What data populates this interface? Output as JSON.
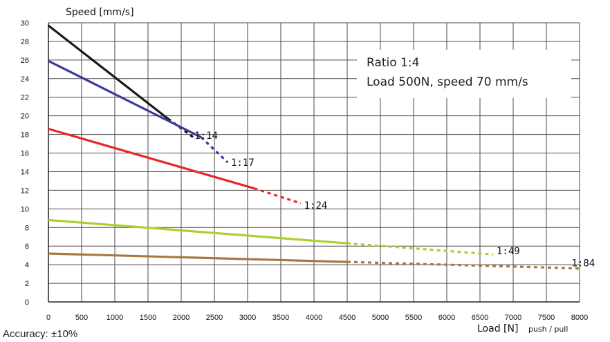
{
  "chart_data": {
    "type": "line",
    "ylabel": "Speed [mm/s]",
    "xlabel": "Load [N]",
    "xlabel_suffix": "push / pull",
    "xlim": [
      0,
      8000
    ],
    "ylim": [
      0,
      30
    ],
    "x_ticks": [
      0,
      500,
      1000,
      1500,
      2000,
      2500,
      3000,
      3500,
      4000,
      4500,
      5000,
      5500,
      6000,
      6500,
      7000,
      7500,
      8000
    ],
    "y_ticks": [
      0,
      2,
      4,
      6,
      8,
      10,
      12,
      14,
      16,
      18,
      20,
      22,
      24,
      26,
      28,
      30
    ],
    "grid": true,
    "series": [
      {
        "name": "1:14",
        "color": "#1a1a1a",
        "solid": [
          [
            0,
            29.7
          ],
          [
            1800,
            19.7
          ]
        ],
        "dashed": [
          [
            1800,
            19.7
          ],
          [
            2200,
            17.6
          ]
        ]
      },
      {
        "name": "1:17",
        "color": "#3a3aa0",
        "solid": [
          [
            0,
            25.9
          ],
          [
            2300,
            17.7
          ]
        ],
        "dashed": [
          [
            2300,
            17.7
          ],
          [
            2700,
            15.0
          ]
        ]
      },
      {
        "name": "1:24",
        "color": "#e8262b",
        "solid": [
          [
            0,
            18.6
          ],
          [
            3100,
            12.2
          ]
        ],
        "dashed": [
          [
            3100,
            12.2
          ],
          [
            3800,
            10.6
          ]
        ]
      },
      {
        "name": "1:49",
        "color": "#a8d130",
        "solid": [
          [
            0,
            8.8
          ],
          [
            4500,
            6.3
          ]
        ],
        "dashed": [
          [
            4500,
            6.3
          ],
          [
            6700,
            5.1
          ]
        ]
      },
      {
        "name": "1:84",
        "color": "#a87840",
        "solid": [
          [
            0,
            5.2
          ],
          [
            4500,
            4.3
          ]
        ],
        "dashed": [
          [
            4500,
            4.3
          ],
          [
            8000,
            3.6
          ]
        ]
      }
    ],
    "annotation": {
      "lines": [
        "Ratio 1:4",
        "Load 500N, speed 70 mm/s"
      ]
    }
  },
  "footer": {
    "accuracy": "Accuracy: ±10%"
  }
}
